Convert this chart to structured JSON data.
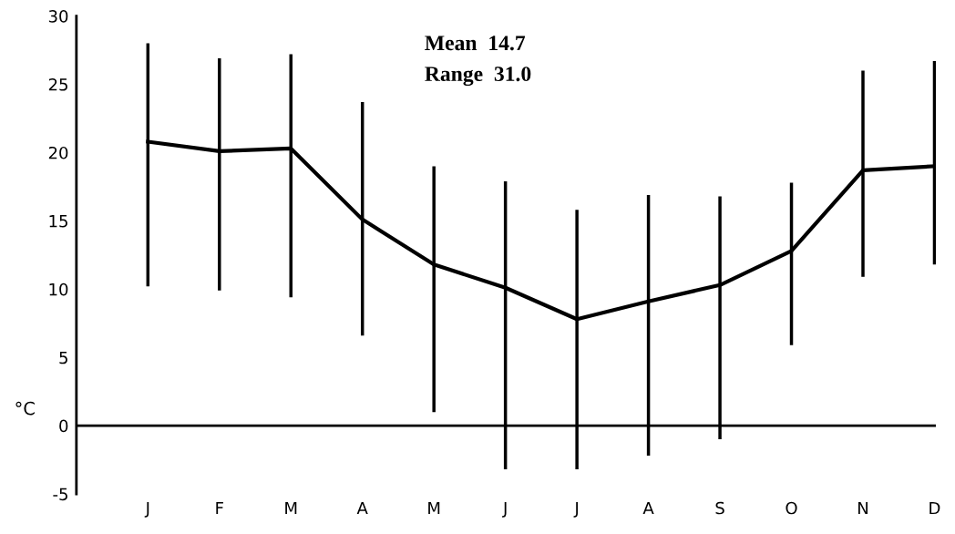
{
  "chart_data": {
    "type": "line",
    "ylabel": "°C",
    "categories": [
      "J",
      "F",
      "M",
      "A",
      "M",
      "J",
      "J",
      "A",
      "S",
      "O",
      "N",
      "D"
    ],
    "series": [
      {
        "color": "#000000",
        "values": [
          20.8,
          20.1,
          20.3,
          15.1,
          11.8,
          10.1,
          7.8,
          9.1,
          10.3,
          12.8,
          18.7,
          19.0
        ],
        "errors": [
          [
            10.2,
            28.0
          ],
          [
            9.9,
            26.9
          ],
          [
            9.4,
            27.2
          ],
          [
            6.6,
            23.7
          ],
          [
            1.0,
            19.0
          ],
          [
            -3.2,
            17.9
          ],
          [
            -3.2,
            15.8
          ],
          [
            -2.2,
            16.9
          ],
          [
            -1.0,
            16.8
          ],
          [
            5.9,
            17.8
          ],
          [
            10.9,
            26.0
          ],
          [
            11.8,
            26.7
          ]
        ]
      }
    ],
    "ylim": [
      -5,
      30
    ],
    "yticks": [
      -5,
      0,
      5,
      10,
      15,
      20,
      25,
      30
    ],
    "ref_lines": [
      {
        "axis": "y",
        "value": 0,
        "color": "#000000"
      }
    ],
    "annotations": [
      "Mean  14.7",
      "Range  31.0"
    ],
    "grid": false,
    "legend": false,
    "marker": "none",
    "line_style": "solid"
  }
}
